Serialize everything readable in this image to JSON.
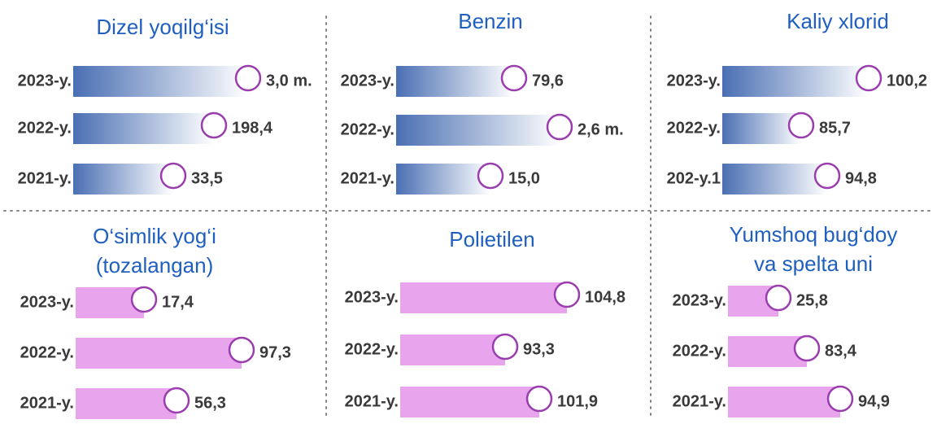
{
  "panels": [
    {
      "title": [
        "Dizel yoqilg‘isi"
      ],
      "rows": [
        {
          "year": "2023-y.",
          "value": "3,0 m."
        },
        {
          "year": "2022-y.",
          "value": "198,4"
        },
        {
          "year": "2021-y.",
          "value": "33,5"
        }
      ]
    },
    {
      "title": [
        "Benzin"
      ],
      "rows": [
        {
          "year": "2023-y.",
          "value": "79,6"
        },
        {
          "year": "2022-y.",
          "value": "2,6 m."
        },
        {
          "year": "2021-y.",
          "value": "15,0"
        }
      ]
    },
    {
      "title": [
        "Kaliy xlorid"
      ],
      "rows": [
        {
          "year": "2023-y.",
          "value": "100,2"
        },
        {
          "year": "2022-y.",
          "value": "85,7"
        },
        {
          "year": "202-y.1",
          "value": "94,8"
        }
      ]
    },
    {
      "title": [
        "O‘simlik yog‘i",
        "(tozalangan)"
      ],
      "rows": [
        {
          "year": "2023-y.",
          "value": "17,4"
        },
        {
          "year": "2022-y.",
          "value": "97,3"
        },
        {
          "year": "2021-y.",
          "value": "56,3"
        }
      ]
    },
    {
      "title": [
        "Polietilen"
      ],
      "rows": [
        {
          "year": "2023-y.",
          "value": "104,8"
        },
        {
          "year": "2022-y.",
          "value": "93,3"
        },
        {
          "year": "2021-y.",
          "value": "101,9"
        }
      ]
    },
    {
      "title": [
        "Yumshoq bug‘doy",
        "va spelta uni"
      ],
      "rows": [
        {
          "year": "2023-y.",
          "value": "25,8"
        },
        {
          "year": "2022-y.",
          "value": "83,4"
        },
        {
          "year": "2021-y.",
          "value": "94,9"
        }
      ]
    }
  ]
}
